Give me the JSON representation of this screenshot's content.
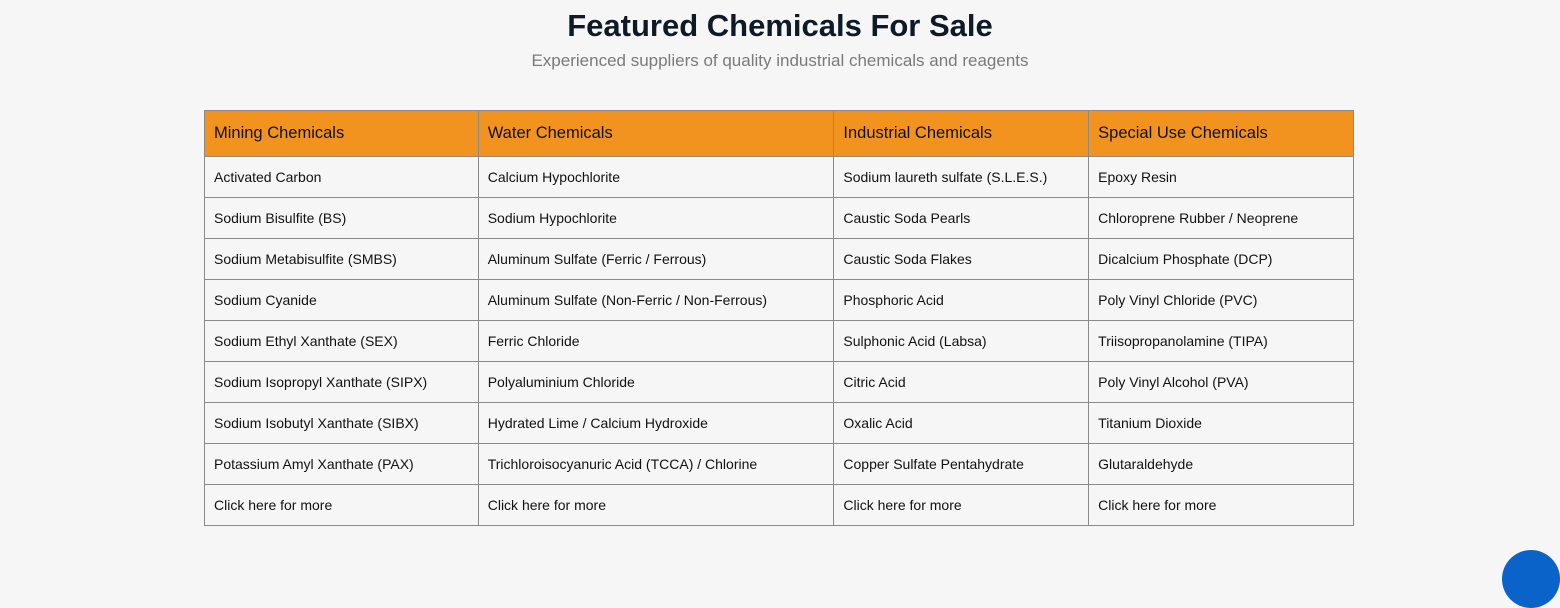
{
  "header": {
    "title": "Featured Chemicals For Sale",
    "subtitle": "Experienced suppliers of quality industrial chemicals and reagents"
  },
  "table": {
    "columns": [
      "Mining Chemicals",
      "Water Chemicals",
      "Industrial Chemicals",
      "Special Use Chemicals"
    ],
    "rows": [
      [
        "Activated Carbon",
        "Calcium Hypochlorite",
        "Sodium laureth sulfate (S.L.E.S.)",
        "Epoxy Resin"
      ],
      [
        "Sodium Bisulfite (BS)",
        "Sodium Hypochlorite",
        "Caustic Soda Pearls",
        "Chloroprene Rubber / Neoprene"
      ],
      [
        "Sodium Metabisulfite (SMBS)",
        "Aluminum Sulfate (Ferric / Ferrous)",
        "Caustic Soda Flakes",
        "Dicalcium Phosphate (DCP)"
      ],
      [
        "Sodium Cyanide",
        "Aluminum Sulfate (Non-Ferric / Non-Ferrous)",
        "Phosphoric Acid",
        "Poly Vinyl Chloride (PVC)"
      ],
      [
        "Sodium Ethyl Xanthate (SEX)",
        "Ferric Chloride",
        "Sulphonic Acid (Labsa)",
        "Triisopropanolamine (TIPA)"
      ],
      [
        "Sodium Isopropyl Xanthate (SIPX)",
        "Polyaluminium Chloride",
        "Citric Acid",
        "Poly Vinyl Alcohol (PVA)"
      ],
      [
        "Sodium Isobutyl Xanthate (SIBX)",
        "Hydrated Lime / Calcium Hydroxide",
        "Oxalic Acid",
        "Titanium Dioxide"
      ],
      [
        "Potassium Amyl Xanthate (PAX)",
        "Trichloroisocyanuric Acid (TCCA) / Chlorine",
        "Copper Sulfate Pentahydrate",
        "Glutaraldehyde"
      ]
    ],
    "more_links": [
      "Click here for more",
      "Click here for more",
      "Click here for more",
      "Click here for more"
    ]
  },
  "colors": {
    "header_bg": "#f2931f",
    "fab": "#0a63c9"
  }
}
